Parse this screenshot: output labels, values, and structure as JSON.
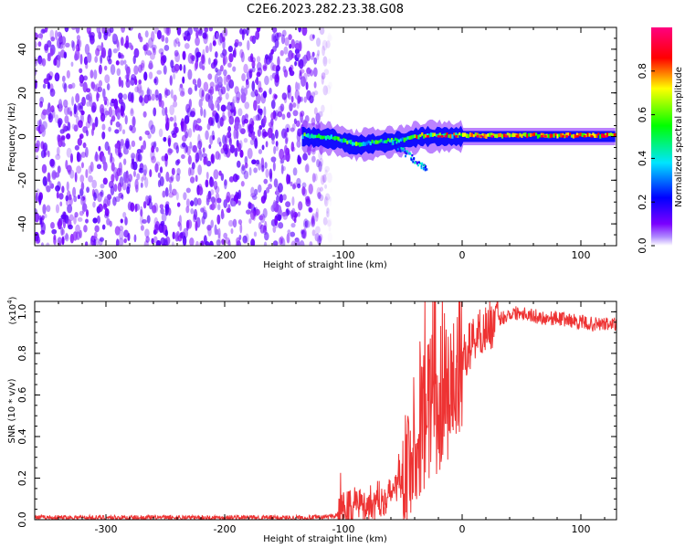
{
  "title": "C2E6.2023.282.23.38.G08",
  "chart_data": [
    {
      "type": "heatmap",
      "xlabel": "Height of straight line (km)",
      "ylabel": "Frequency (Hz)",
      "xlim": [
        -360,
        130
      ],
      "ylim": [
        -50,
        50
      ],
      "x_ticks": [
        -300,
        -200,
        -100,
        0,
        100
      ],
      "x_tick_labels": [
        "-300",
        "-200",
        "-100",
        "0",
        "100"
      ],
      "y_ticks": [
        -40,
        -20,
        0,
        20,
        40
      ],
      "y_tick_labels": [
        "-40",
        "-20",
        "0",
        "20",
        "40"
      ],
      "colorbar": {
        "label": "Normalized spectral amplitude",
        "range": [
          0,
          1
        ],
        "ticks": [
          0.0,
          0.2,
          0.4,
          0.6,
          0.8
        ],
        "tick_labels": [
          "0.0",
          "0.2",
          "0.4",
          "0.6",
          "0.8"
        ],
        "colormap": [
          "#ffffff",
          "#7b00ff",
          "#0000ff",
          "#00e5ff",
          "#00ff00",
          "#ffff00",
          "#ff0000",
          "#ff0080"
        ]
      },
      "noise_region_x": [
        -360,
        -130
      ],
      "signal_ridge": [
        {
          "x": -135,
          "y": 0
        },
        {
          "x": -110,
          "y": -1
        },
        {
          "x": -90,
          "y": -4
        },
        {
          "x": -70,
          "y": -3
        },
        {
          "x": -50,
          "y": -2
        },
        {
          "x": -35,
          "y": 0
        },
        {
          "x": -15,
          "y": 0
        },
        {
          "x": 0,
          "y": 0
        },
        {
          "x": 50,
          "y": 0
        },
        {
          "x": 130,
          "y": 0
        }
      ],
      "grid": false
    },
    {
      "type": "line",
      "xlabel": "Height of straight line (km)",
      "ylabel": "SNR (10 * v/v)",
      "y_scale_label": "(x10",
      "y_scale_exponent": "4",
      "y_scale_suffix": ")",
      "xlim": [
        -360,
        130
      ],
      "ylim": [
        0,
        1.05
      ],
      "x_ticks": [
        -300,
        -200,
        -100,
        0,
        100
      ],
      "x_tick_labels": [
        "-300",
        "-200",
        "-100",
        "0",
        "100"
      ],
      "y_ticks": [
        0.0,
        0.2,
        0.4,
        0.6,
        0.8,
        1.0
      ],
      "y_tick_labels": [
        "0.0",
        "0.2",
        "0.4",
        "0.6",
        "0.8",
        "1.0"
      ],
      "series": [
        {
          "color": "#ee3333",
          "x": [
            -360,
            -300,
            -250,
            -200,
            -150,
            -120,
            -105,
            -100,
            -90,
            -80,
            -70,
            -60,
            -50,
            -45,
            -40,
            -35,
            -30,
            -25,
            -20,
            -15,
            -10,
            -5,
            0,
            5,
            10,
            20,
            30,
            40,
            50,
            60,
            70,
            80,
            90,
            100,
            110,
            120,
            130
          ],
          "y": [
            0.01,
            0.01,
            0.01,
            0.01,
            0.01,
            0.01,
            0.02,
            0.05,
            0.08,
            0.07,
            0.1,
            0.12,
            0.2,
            0.3,
            0.35,
            0.45,
            0.5,
            0.6,
            0.55,
            0.65,
            0.6,
            0.7,
            0.75,
            0.82,
            0.88,
            0.92,
            0.96,
            0.99,
            1.0,
            0.98,
            0.97,
            0.97,
            0.96,
            0.95,
            0.94,
            0.94,
            0.94
          ]
        }
      ],
      "grid": false
    }
  ]
}
